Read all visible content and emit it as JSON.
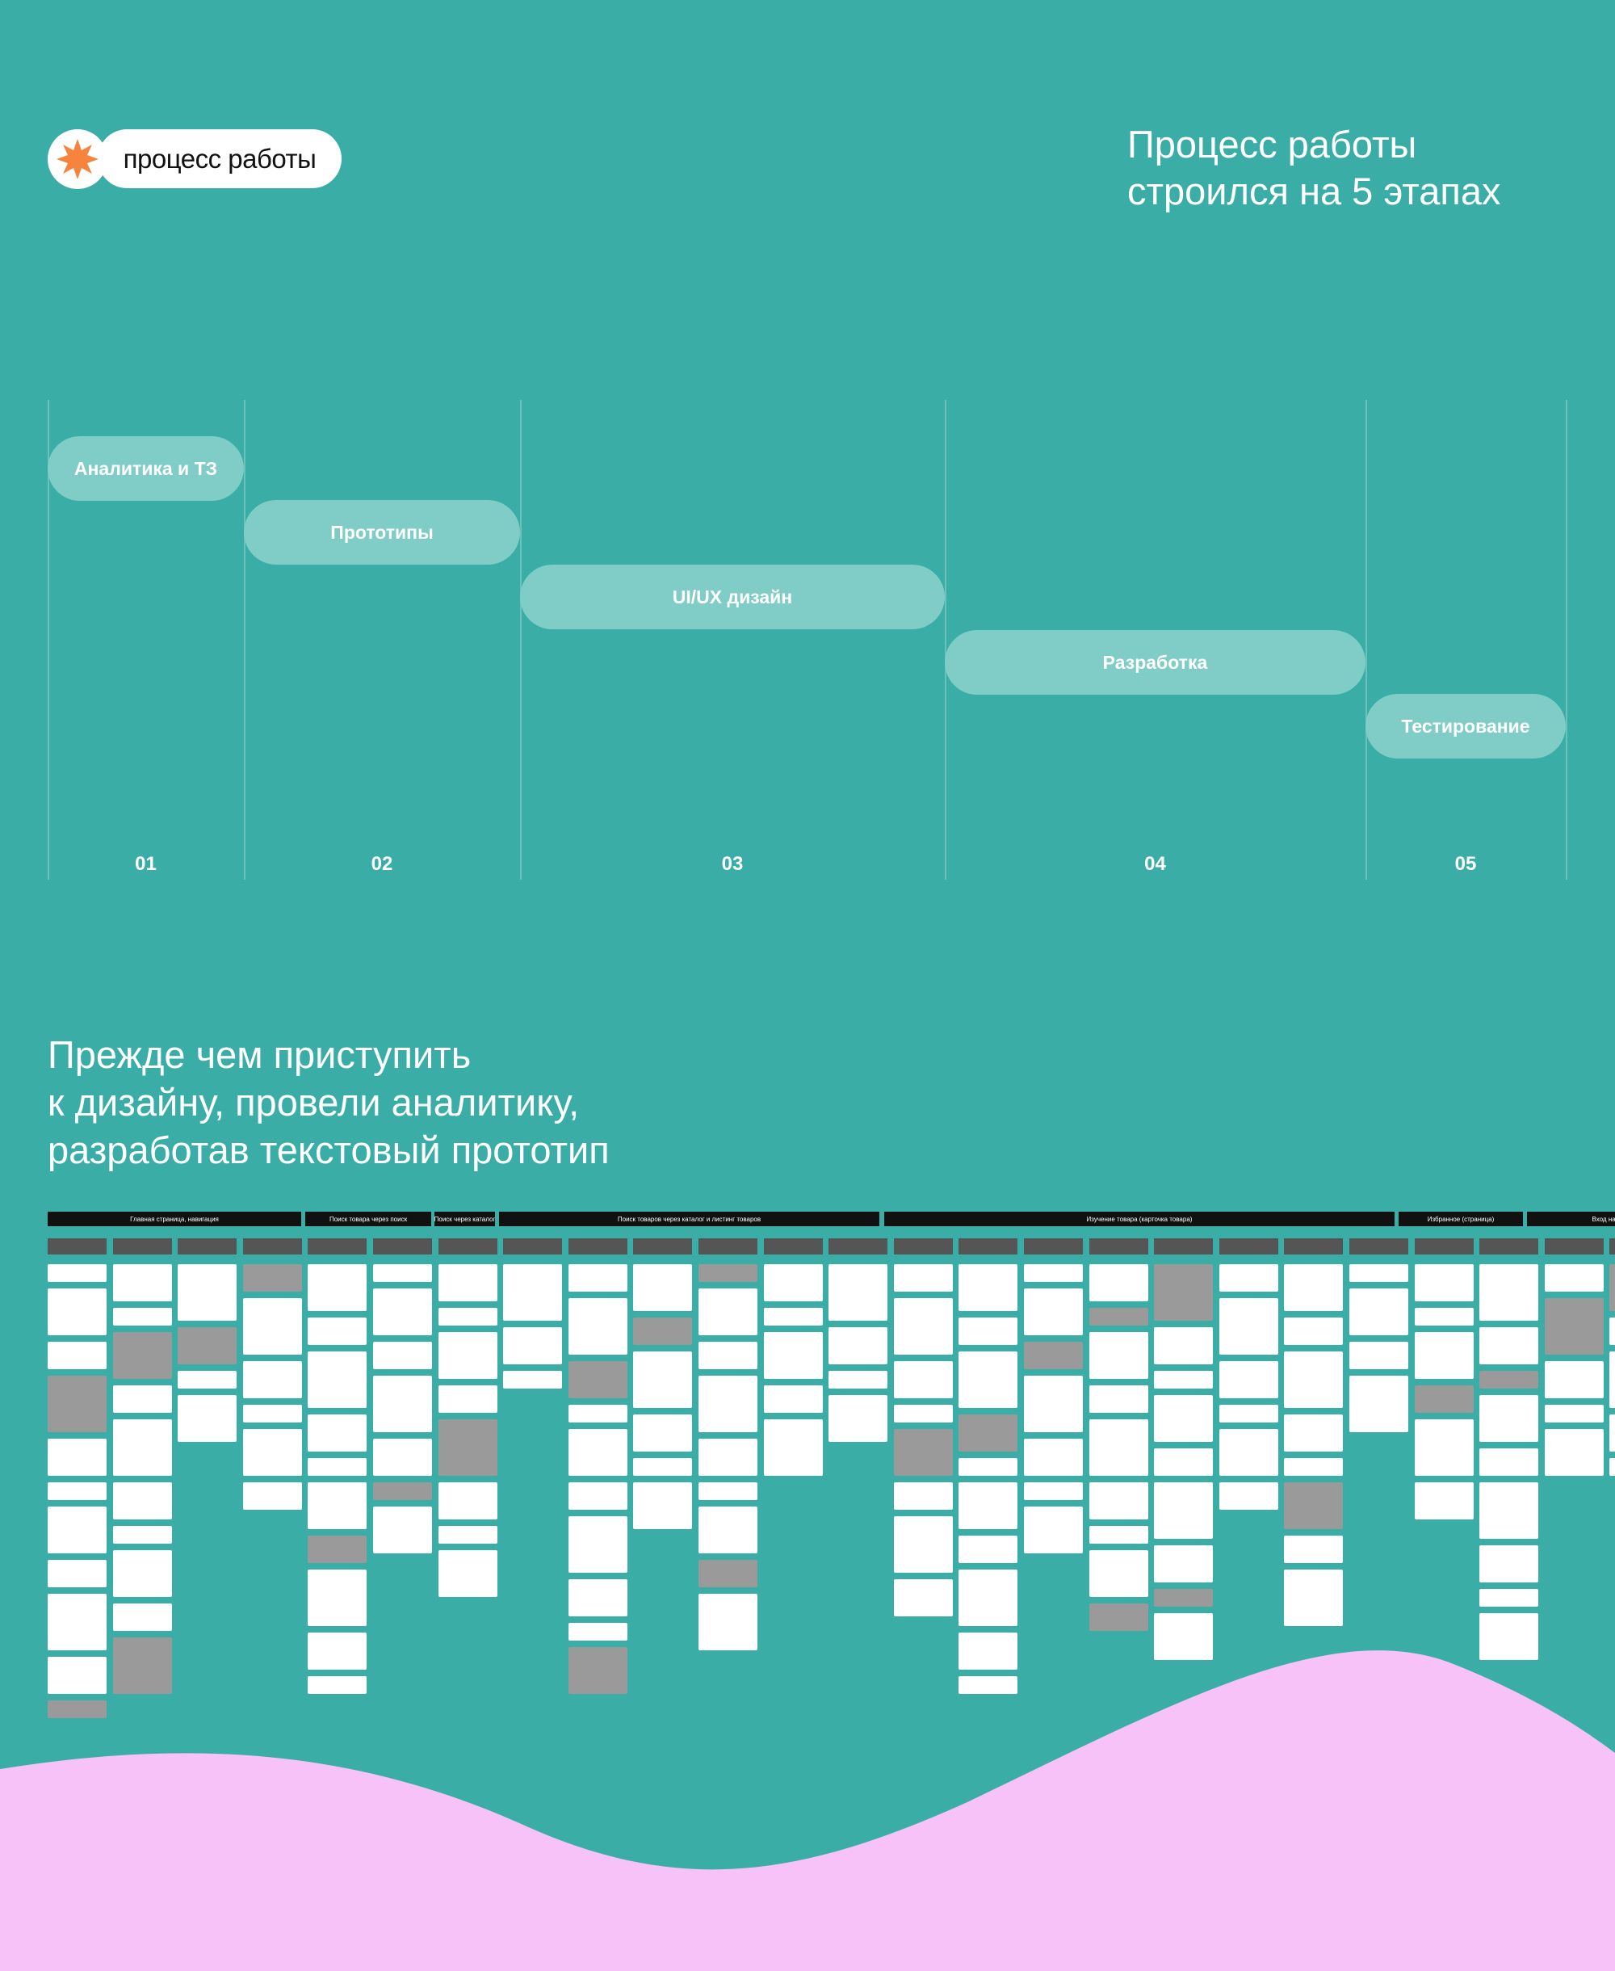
{
  "header": {
    "logo_text": "процесс работы",
    "title_lines": [
      "Процесс работы",
      "строился на 5 этапах"
    ]
  },
  "stages": [
    {
      "label": "Аналитика и ТЗ",
      "number": "01"
    },
    {
      "label": "Прототипы",
      "number": "02"
    },
    {
      "label": "UI/UX дизайн",
      "number": "03"
    },
    {
      "label": "Разработка",
      "number": "04"
    },
    {
      "label": "Тестирование",
      "number": "05"
    }
  ],
  "section": {
    "heading_lines": [
      "Прежде чем приступить",
      "к дизайну, провели аналитику,",
      "разработав текстовый прототип"
    ]
  },
  "board": {
    "groups": [
      "Главная страница, навигация",
      "Поиск товара через поиск",
      "Поиск через каталог",
      "Поиск товаров через каталог и листинг товаров",
      "Изучение товара (карточка товара)",
      "Избранное (страница)",
      "Вход на сайт"
    ]
  }
}
